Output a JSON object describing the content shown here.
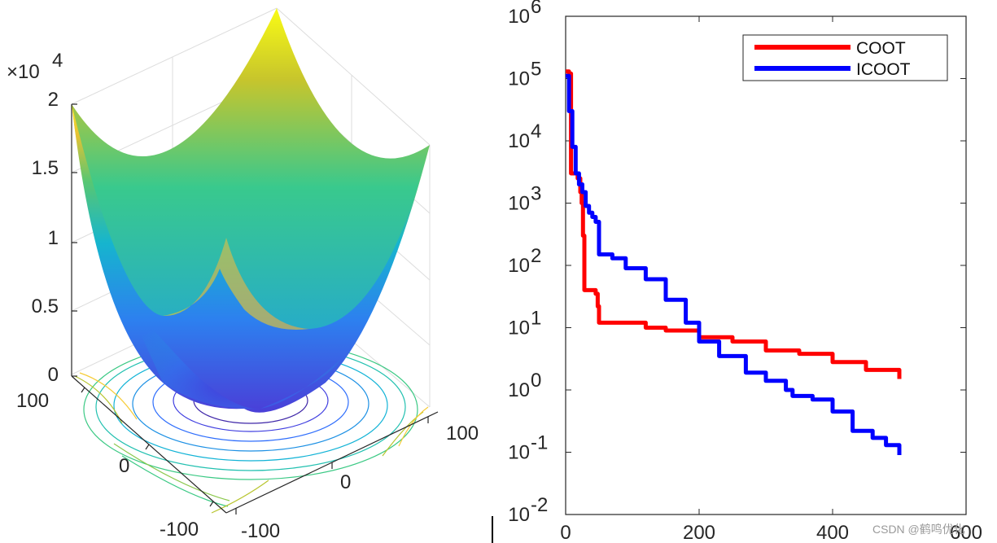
{
  "chart_data": [
    {
      "type": "surface",
      "description_kind": "3d-surface-with-contour-base",
      "z_exponent_label": "×10",
      "z_exponent_power": "4",
      "z_ticks": [
        "2",
        "1.5",
        "1",
        "0.5",
        "0"
      ],
      "y_ticks": [
        "100",
        "0",
        "-100"
      ],
      "x_ticks": [
        "-100",
        "0",
        "100"
      ],
      "x_range": [
        -100,
        100
      ],
      "y_range": [
        -100,
        100
      ],
      "z_range": [
        0,
        20000
      ],
      "colormap": [
        "#3e26a8",
        "#2f6efc",
        "#12b3d6",
        "#3bc984",
        "#b8c52f",
        "#f6cc38",
        "#f9fb15"
      ]
    },
    {
      "type": "line",
      "y_scale": "log",
      "x_ticks": [
        "0",
        "200",
        "400",
        "600"
      ],
      "y_tick_powers": [
        "6",
        "5",
        "4",
        "3",
        "2",
        "1",
        "0",
        "-1",
        "-2"
      ],
      "y_tick_base": "10",
      "xlim": [
        0,
        600
      ],
      "ylim": [
        0.01,
        1000000
      ],
      "legend_position": "top-right",
      "series": [
        {
          "name": "COOT",
          "color": "#ff0000",
          "points": [
            [
              0,
              130000
            ],
            [
              5,
              120000
            ],
            [
              8,
              3000
            ],
            [
              14,
              3000
            ],
            [
              18,
              2500
            ],
            [
              22,
              1500
            ],
            [
              24,
              1000
            ],
            [
              26,
              300
            ],
            [
              28,
              40
            ],
            [
              30,
              40
            ],
            [
              40,
              40
            ],
            [
              45,
              35
            ],
            [
              48,
              22
            ],
            [
              50,
              12
            ],
            [
              80,
              12
            ],
            [
              100,
              12
            ],
            [
              120,
              10
            ],
            [
              150,
              9
            ],
            [
              200,
              7
            ],
            [
              250,
              6
            ],
            [
              300,
              4.3
            ],
            [
              350,
              3.8
            ],
            [
              400,
              2.8
            ],
            [
              450,
              2.1
            ],
            [
              500,
              1.5
            ]
          ]
        },
        {
          "name": "ICOOT",
          "color": "#0000ff",
          "points": [
            [
              0,
              110000
            ],
            [
              5,
              30000
            ],
            [
              10,
              8000
            ],
            [
              15,
              3000
            ],
            [
              20,
              2000
            ],
            [
              25,
              1500
            ],
            [
              30,
              900
            ],
            [
              35,
              700
            ],
            [
              40,
              600
            ],
            [
              45,
              500
            ],
            [
              50,
              150
            ],
            [
              70,
              130
            ],
            [
              90,
              90
            ],
            [
              120,
              60
            ],
            [
              150,
              28
            ],
            [
              180,
              12
            ],
            [
              200,
              6
            ],
            [
              230,
              3.5
            ],
            [
              270,
              1.9
            ],
            [
              300,
              1.4
            ],
            [
              330,
              1.0
            ],
            [
              340,
              0.8
            ],
            [
              370,
              0.7
            ],
            [
              400,
              0.45
            ],
            [
              430,
              0.22
            ],
            [
              460,
              0.17
            ],
            [
              480,
              0.13
            ],
            [
              500,
              0.09
            ]
          ]
        }
      ]
    }
  ],
  "watermark": "CSDN @鹤鸣优化"
}
